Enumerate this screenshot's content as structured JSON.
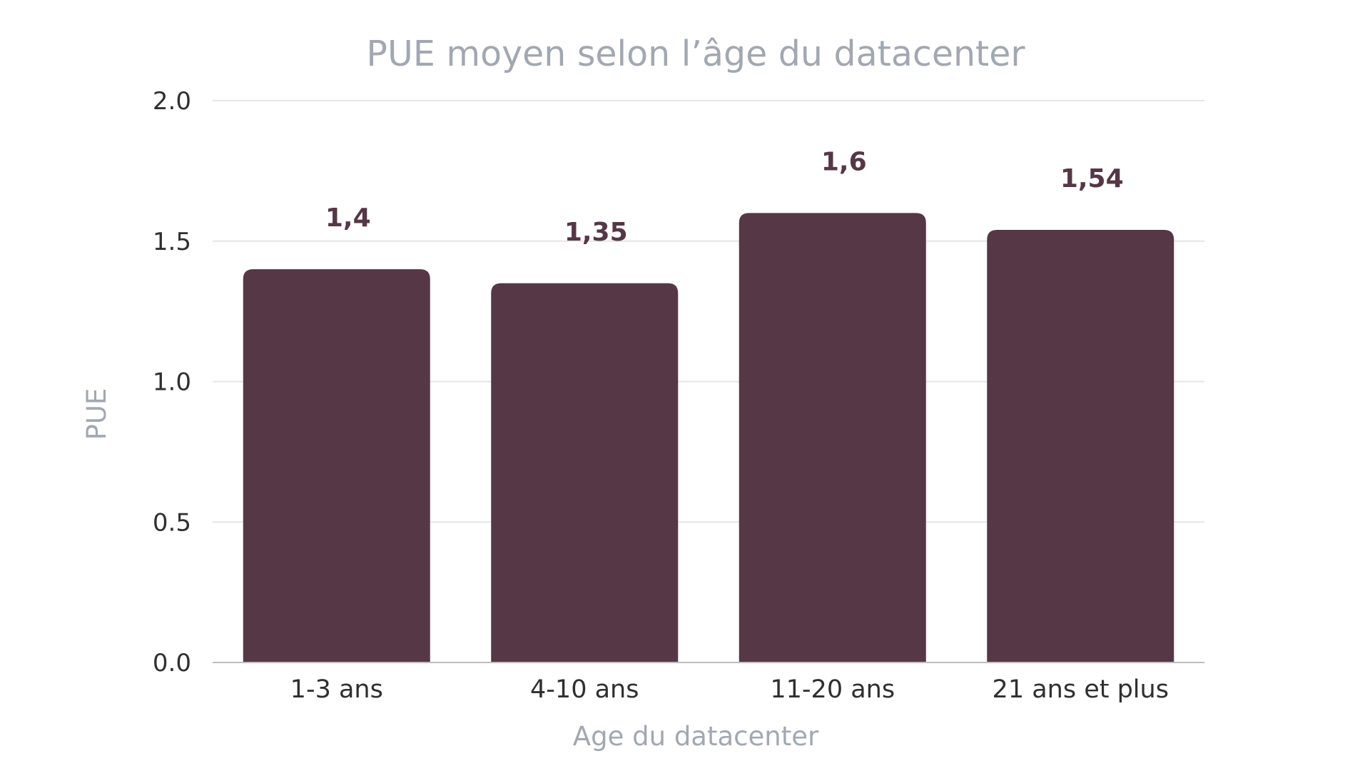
{
  "chart_data": {
    "type": "bar",
    "title": "PUE moyen selon l’âge du datacenter",
    "xlabel": "Age du datacenter",
    "ylabel": "PUE",
    "categories": [
      "1-3 ans",
      "4-10 ans",
      "11-20 ans",
      "21 ans et plus"
    ],
    "values": [
      1.4,
      1.35,
      1.6,
      1.54
    ],
    "value_labels": [
      "1,4",
      "1,35",
      "1,6",
      "1,54"
    ],
    "ylim": [
      0,
      2
    ],
    "yticks": [
      0,
      0.5,
      1,
      1.5,
      2
    ],
    "ytick_labels": [
      "0.0",
      "0.5",
      "1.0",
      "1.5",
      "2.0"
    ],
    "grid": true,
    "legend": "none",
    "colors": {
      "bar": "#553746",
      "value_label": "#553746",
      "title": "#A2A8B1",
      "axis_title": "#A2A8B1",
      "tick": "#2f2f2f",
      "grid": "#E6E6E6"
    }
  }
}
